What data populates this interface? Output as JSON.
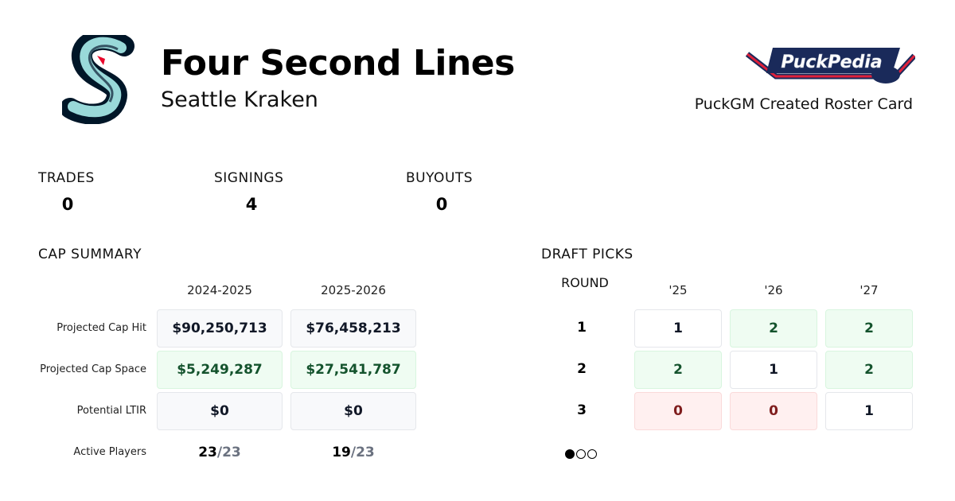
{
  "header": {
    "title": "Four Second Lines",
    "team": "Seattle Kraken",
    "tagline": "PuckGM Created Roster Card",
    "logo_text": "PuckPedia"
  },
  "stats": [
    {
      "label": "TRADES",
      "value": "0"
    },
    {
      "label": "SIGNINGS",
      "value": "4"
    },
    {
      "label": "BUYOUTS",
      "value": "0"
    }
  ],
  "cap": {
    "title": "CAP SUMMARY",
    "seasons": [
      "2024-2025",
      "2025-2026"
    ],
    "rows": [
      {
        "label": "Projected Cap Hit",
        "values": [
          "$90,250,713",
          "$76,458,213"
        ],
        "status": "neutral"
      },
      {
        "label": "Projected Cap Space",
        "values": [
          "$5,249,287",
          "$27,541,787"
        ],
        "status": "positive"
      },
      {
        "label": "Potential LTIR",
        "values": [
          "$0",
          "$0"
        ],
        "status": "neutral"
      }
    ],
    "active": {
      "label": "Active Players",
      "values": [
        {
          "count": "23",
          "max": "/23"
        },
        {
          "count": "19",
          "max": "/23"
        }
      ]
    }
  },
  "draft": {
    "title": "DRAFT PICKS",
    "round_label": "ROUND",
    "years": [
      "'25",
      "'26",
      "'27"
    ],
    "rows": [
      {
        "round": "1",
        "picks": [
          "1",
          "2",
          "2"
        ],
        "status": [
          "normal",
          "surplus",
          "surplus"
        ]
      },
      {
        "round": "2",
        "picks": [
          "2",
          "1",
          "2"
        ],
        "status": [
          "surplus",
          "normal",
          "surplus"
        ]
      },
      {
        "round": "3",
        "picks": [
          "0",
          "0",
          "1"
        ],
        "status": [
          "deficit",
          "deficit",
          "normal"
        ]
      }
    ],
    "pagination": {
      "pages": 3,
      "current": 1
    }
  },
  "colors": {
    "positive_bg": "#effcf2",
    "positive_text": "#14532d",
    "negative_bg": "#fff0f0",
    "negative_text": "#7f1d1d",
    "neutral_bg": "#f8f9fb"
  }
}
